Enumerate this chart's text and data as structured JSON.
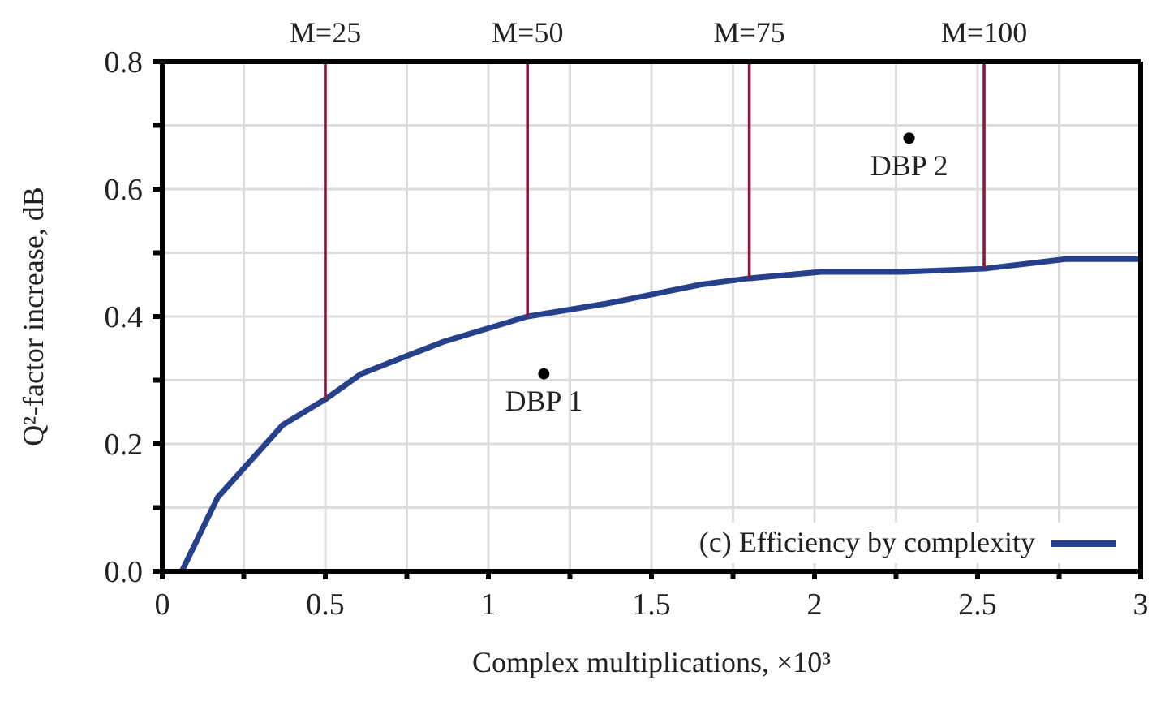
{
  "chart_data": {
    "type": "line",
    "xlabel": "Complex multiplications, ×10³",
    "ylabel": "Q²-factor increase, dB",
    "xlim": [
      0,
      3
    ],
    "ylim": [
      0,
      0.8
    ],
    "xticks": [
      0,
      {
        "value": 0.25,
        "label": null
      },
      0.5,
      {
        "value": 0.75,
        "label": null
      },
      1,
      {
        "value": 1.25,
        "label": null
      },
      1.5,
      {
        "value": 1.75,
        "label": null
      },
      2,
      {
        "value": 2.25,
        "label": null
      },
      2.5,
      {
        "value": 2.75,
        "label": null
      },
      3
    ],
    "yticks": [
      {
        "value": 0,
        "label": "0.0"
      },
      {
        "value": 0.1,
        "label": null
      },
      {
        "value": 0.2,
        "label": "0.2"
      },
      {
        "value": 0.3,
        "label": null
      },
      {
        "value": 0.4,
        "label": "0.4"
      },
      {
        "value": 0.5,
        "label": null
      },
      {
        "value": 0.6,
        "label": "0.6"
      },
      {
        "value": 0.7,
        "label": null
      },
      {
        "value": 0.8,
        "label": "0.8"
      }
    ],
    "grid": true,
    "legend": "bottom right",
    "marker": "none",
    "line_style": "solid",
    "series": [
      {
        "name": "(c) Efficiency by complexity",
        "color": "#26408b",
        "x": [
          0.06,
          0.17,
          0.37,
          0.5,
          0.61,
          0.86,
          1.12,
          1.36,
          1.65,
          1.8,
          2.02,
          2.27,
          2.52,
          2.77,
          3.0
        ],
        "values": [
          0,
          0.116,
          0.23,
          0.27,
          0.31,
          0.36,
          0.4,
          0.42,
          0.45,
          0.46,
          0.47,
          0.47,
          0.475,
          0.49,
          0.49
        ]
      },
      {
        "type": "line",
        "color": "#8b1a3a",
        "x": [
          0.5,
          0.5
        ],
        "values": [
          0.27,
          0.8
        ]
      },
      {
        "type": "line",
        "color": "#8b1a3a",
        "x": [
          1.12,
          1.12
        ],
        "values": [
          0.4,
          0.8
        ]
      },
      {
        "type": "line",
        "color": "#8b1a3a",
        "x": [
          1.8,
          1.8
        ],
        "values": [
          0.46,
          0.8
        ]
      },
      {
        "type": "line",
        "color": "#8b1a3a",
        "x": [
          2.52,
          2.52
        ],
        "values": [
          0.475,
          0.8
        ]
      },
      {
        "type": "scatter",
        "marker": "circle",
        "color": "#000000",
        "x": [
          1.17,
          2.29
        ],
        "values": [
          0.31,
          0.68
        ]
      }
    ],
    "annotations": [
      {
        "text": "M=25",
        "x": 0.5,
        "y": 0.8
      },
      {
        "text": "M=50",
        "x": 1.12,
        "y": 0.8
      },
      {
        "text": "M=75",
        "x": 1.8,
        "y": 0.8
      },
      {
        "text": "M=100",
        "x": 2.52,
        "y": 0.8
      },
      {
        "text": "DBP 1",
        "x": 1.17,
        "y": 0.31
      },
      {
        "text": "DBP 2",
        "x": 2.29,
        "y": 0.68
      }
    ]
  }
}
